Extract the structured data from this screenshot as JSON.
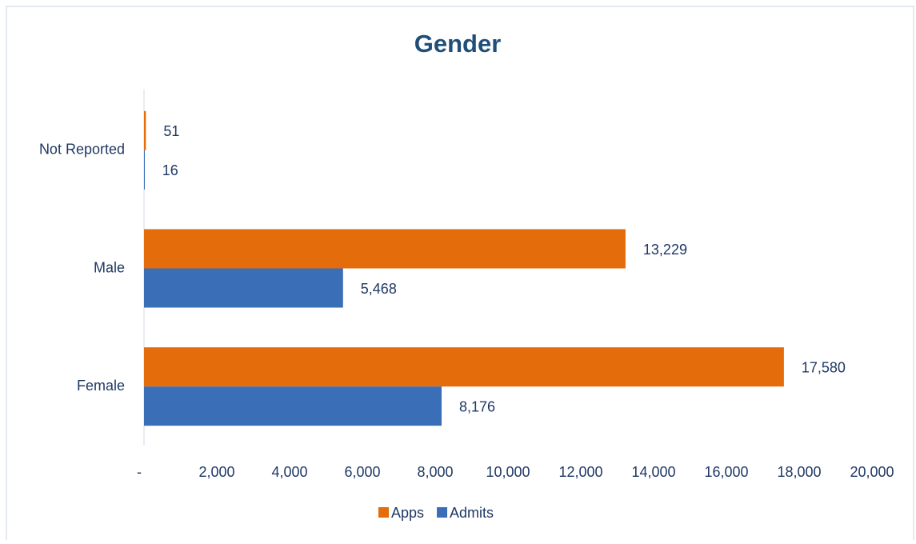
{
  "chart_data": {
    "type": "hbar",
    "title": "Gender",
    "categories": [
      "Female",
      "Male",
      "Not Reported"
    ],
    "series": [
      {
        "name": "Apps",
        "color": "#e46c0a",
        "values": [
          17580,
          13229,
          51
        ],
        "value_labels": [
          "17,580",
          "13,229",
          "51"
        ]
      },
      {
        "name": "Admits",
        "color": "#3a6fb8",
        "values": [
          8176,
          5468,
          16
        ],
        "value_labels": [
          "8,176",
          "5,468",
          "16"
        ]
      }
    ],
    "xlim": [
      0,
      20000
    ],
    "xticks": [
      {
        "value": 0,
        "label": "-"
      },
      {
        "value": 2000,
        "label": "2,000"
      },
      {
        "value": 4000,
        "label": "4,000"
      },
      {
        "value": 6000,
        "label": "6,000"
      },
      {
        "value": 8000,
        "label": "8,000"
      },
      {
        "value": 10000,
        "label": "10,000"
      },
      {
        "value": 12000,
        "label": "12,000"
      },
      {
        "value": 14000,
        "label": "14,000"
      },
      {
        "value": 16000,
        "label": "16,000"
      },
      {
        "value": 18000,
        "label": "18,000"
      },
      {
        "value": 20000,
        "label": "20,000"
      }
    ],
    "legend": "bottom"
  }
}
